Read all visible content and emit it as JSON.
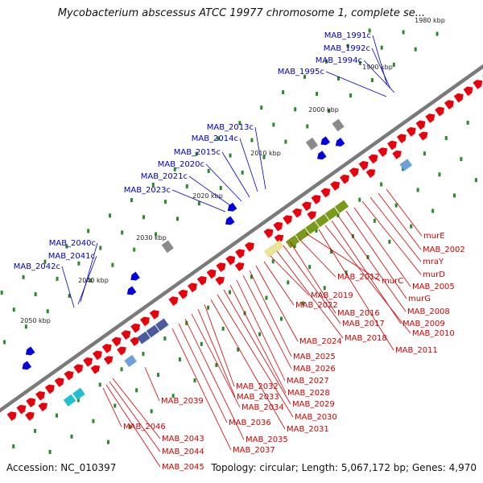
{
  "title": "Mycobacterium abscessus ATCC 19977 chromosome 1, complete se...",
  "footer": {
    "accession": "Accession: NC_010397",
    "topology": "Topology: circular; Length: 5,067,172 bp; Genes: 4,970"
  },
  "ticks": [
    "1980 kbp",
    "1990 kbp",
    "2000 kbp",
    "2010 kbp",
    "2020 kbp",
    "2030 kbp",
    "2040 kbp",
    "2050 kbp"
  ],
  "blue_labels": [
    "MAB_1991c",
    "MAB_1992c",
    "MAB_1994c",
    "MAB_1995c",
    "MAB_2013c",
    "MAB_2014c",
    "MAB_2015c",
    "MAB_2020c",
    "MAB_2021c",
    "MAB_2023c",
    "MAB_2040c",
    "MAB_2041c",
    "MAB_2042c"
  ],
  "red_labels": [
    "murE",
    "MAB_2002",
    "mraY",
    "murD",
    "MAB_2005",
    "murG",
    "MAB_2008",
    "MAB_2009",
    "MAB_2010",
    "MAB_2011",
    "murC",
    "MAB_2012",
    "MAB_2016",
    "MAB_2017",
    "MAB_2018",
    "MAB_2019",
    "MAB_2022",
    "MAB_2024",
    "MAB_2025",
    "MAB_2026",
    "MAB_2027",
    "MAB_2028",
    "MAB_2029",
    "MAB_2030",
    "MAB_2031",
    "MAB_2032",
    "MAB_2033",
    "MAB_2034",
    "MAB_2035",
    "MAB_2036",
    "MAB_2037",
    "MAB_2039",
    "MAB_2043",
    "MAB_2044",
    "MAB_2045",
    "MAB_2046"
  ],
  "colors": {
    "backbone": "#7a7a7a",
    "forward_gene": "#e8000a",
    "reverse_gene": "#0000e0",
    "tick_dot": "#2a8a2a",
    "label_red": "#d00000",
    "label_blue": "#0000c8",
    "olive_feature": "#7a9a1a",
    "khaki_feature": "#e8e49a",
    "slate_feature": "#4a5aa0",
    "cyan_feature": "#20c0d0"
  }
}
